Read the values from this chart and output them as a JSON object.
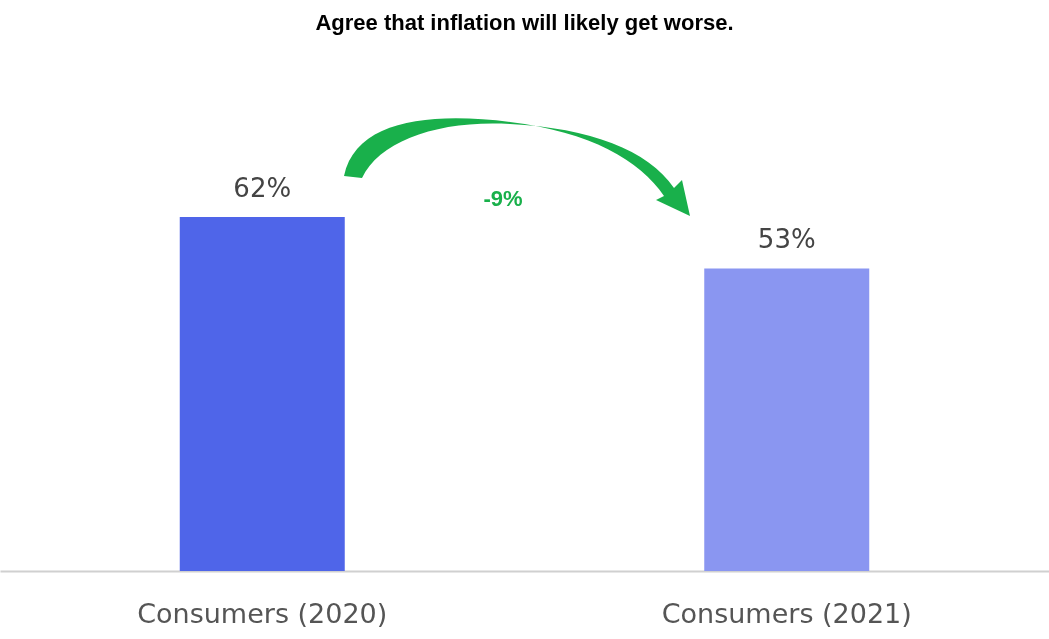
{
  "chart_data": {
    "type": "bar",
    "title": "Agree that inflation will likely get worse.",
    "categories": [
      "Consumers (2020)",
      "Consumers (2021)"
    ],
    "values": [
      62,
      53
    ],
    "colors": [
      "#4f65e9",
      "#8a96f1"
    ],
    "value_labels": [
      "62%",
      "53%"
    ],
    "annotations": [
      "-9%"
    ]
  }
}
